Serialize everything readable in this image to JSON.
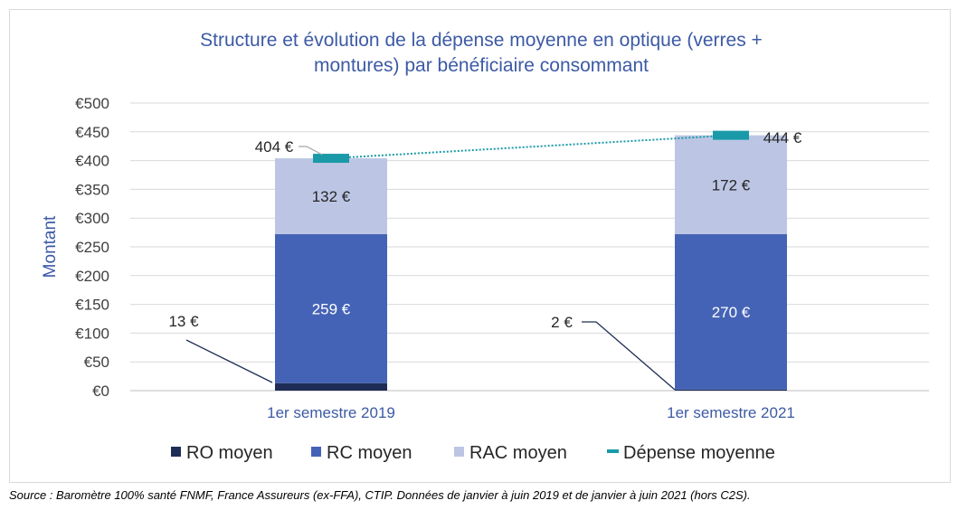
{
  "chart_data": {
    "type": "bar",
    "stacked": true,
    "title_lines": [
      "Structure et évolution de la dépense moyenne en optique (verres +",
      "montures) par bénéficiaire consommant"
    ],
    "ylabel": "Montant",
    "ylim": [
      0,
      500
    ],
    "yticks": [
      {
        "value": 0,
        "label": "€0"
      },
      {
        "value": 50,
        "label": "€50"
      },
      {
        "value": 100,
        "label": "€100"
      },
      {
        "value": 150,
        "label": "€150"
      },
      {
        "value": 200,
        "label": "€200"
      },
      {
        "value": 250,
        "label": "€250"
      },
      {
        "value": 300,
        "label": "€300"
      },
      {
        "value": 350,
        "label": "€350"
      },
      {
        "value": 400,
        "label": "€400"
      },
      {
        "value": 450,
        "label": "€450"
      },
      {
        "value": 500,
        "label": "€500"
      }
    ],
    "grid": true,
    "legend_position": "bottom",
    "categories": [
      "1er semestre 2019",
      "1er semestre 2021"
    ],
    "series": [
      {
        "name": "RO moyen",
        "values": [
          13,
          2
        ],
        "labels": [
          "13 €",
          "2 €"
        ],
        "color": "#1f2d56",
        "label_color": "#262626"
      },
      {
        "name": "RC moyen",
        "values": [
          259,
          270
        ],
        "labels": [
          "259 €",
          "270 €"
        ],
        "color": "#4563b6",
        "label_color": "#ffffff"
      },
      {
        "name": "RAC moyen",
        "values": [
          132,
          172
        ],
        "labels": [
          "132 €",
          "172 €"
        ],
        "color": "#bcc6e4",
        "label_color": "#262626"
      }
    ],
    "line_series": {
      "name": "Dépense moyenne",
      "values": [
        404,
        444
      ],
      "labels": [
        "404 €",
        "444 €"
      ],
      "color": "#1a9aa8"
    }
  },
  "source": "Source : Baromètre 100% santé FNMF, France Assureurs (ex-FFA), CTIP. Données de janvier à juin 2019 et de janvier à juin 2021 (hors C2S)."
}
